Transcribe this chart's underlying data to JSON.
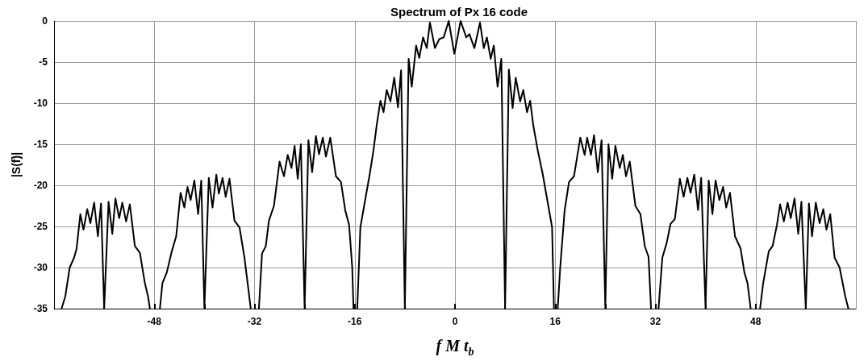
{
  "chart_data": {
    "type": "line",
    "title": "Spectrum of Px 16 code",
    "xlabel": "f M t$_{b}$",
    "ylabel": "|S(f)|",
    "xlim": [
      -64,
      64
    ],
    "ylim": [
      -35,
      0
    ],
    "xticks": [
      {
        "value": -56,
        "label": null
      },
      -48,
      {
        "value": -40,
        "label": null
      },
      -32,
      {
        "value": -24,
        "label": null
      },
      -16,
      {
        "value": -8,
        "label": null
      },
      0,
      {
        "value": 8,
        "label": null
      },
      16,
      {
        "value": 24,
        "label": null
      },
      32,
      {
        "value": 40,
        "label": null
      },
      48,
      {
        "value": 56,
        "label": null
      }
    ],
    "yticks": [
      -35,
      -30,
      -25,
      -20,
      -15,
      -10,
      -5,
      0
    ],
    "grid": true,
    "marker": "none",
    "line_style": "solid",
    "series": [
      {
        "color": "#000000",
        "x": [
          -62.8,
          -62.2,
          -61.5,
          -60.8,
          -60.4,
          -59.8,
          -59.3,
          -58.7,
          -58.2,
          -57.6,
          -57.0,
          -56.5,
          -56.0,
          -55.3,
          -54.7,
          -54.2,
          -53.6,
          -53.1,
          -52.5,
          -51.9,
          -51.1,
          -50.3,
          -49.5,
          -49.0,
          -48.7,
          -48,
          -47.1,
          -46.7,
          -46.0,
          -45.2,
          -44.5,
          -43.8,
          -43.2,
          -42.7,
          -42.2,
          -41.6,
          -41.0,
          -40.5,
          -40.0,
          -39.3,
          -38.7,
          -38.1,
          -37.7,
          -37.1,
          -36.6,
          -36.0,
          -35.2,
          -34.4,
          -33.6,
          -33.1,
          -32.6,
          -32,
          -31.3,
          -30.8,
          -30.2,
          -29.7,
          -28.9,
          -28.0,
          -27.3,
          -26.7,
          -26.1,
          -25.6,
          -25.1,
          -24.6,
          -24.0,
          -23.4,
          -22.8,
          -22.2,
          -21.7,
          -21.1,
          -20.6,
          -19.9,
          -19.0,
          -18.2,
          -17.5,
          -16.9,
          -16.4,
          -16.2,
          -16,
          -15.6,
          -15.1,
          -14.5,
          -13.6,
          -13.0,
          -12.5,
          -11.9,
          -11.4,
          -10.9,
          -10.3,
          -9.7,
          -9.1,
          -8.6,
          -8.0,
          -7.4,
          -6.9,
          -6.2,
          -5.7,
          -5.1,
          -4.5,
          -4.0,
          -3.2,
          -2.5,
          -1.8,
          -1.0,
          -0.1,
          0.9,
          1.8,
          2.3,
          3.1,
          4.0,
          4.6,
          5.1,
          5.7,
          6.2,
          6.8,
          7.4,
          8.0,
          8.6,
          9.2,
          9.7,
          10.4,
          10.9,
          11.5,
          12.0,
          12.5,
          13.2,
          14.0,
          14.9,
          15.5,
          15.8,
          16,
          16.4,
          16.8,
          17.5,
          18.2,
          19.0,
          20.0,
          20.7,
          21.1,
          21.7,
          22.2,
          22.8,
          23.4,
          24.0,
          24.5,
          25.1,
          25.6,
          26.3,
          26.8,
          27.3,
          27.9,
          28.8,
          29.6,
          30.3,
          30.9,
          31.3,
          32,
          32.5,
          33.1,
          33.8,
          34.4,
          35.1,
          35.9,
          36.5,
          37.1,
          37.6,
          38.2,
          38.8,
          39.3,
          40.0,
          40.5,
          41.1,
          41.6,
          42.2,
          42.8,
          43.3,
          43.9,
          44.7,
          45.6,
          46.2,
          46.7,
          47.2,
          48,
          48.7,
          49.2,
          50.1,
          50.7,
          51.4,
          51.9,
          52.5,
          53.1,
          53.6,
          54.2,
          54.8,
          55.3,
          56.0,
          56.5,
          57.0,
          57.6,
          58.2,
          58.8,
          59.3,
          59.9,
          60.6,
          61.4,
          62.3,
          62.8
        ],
        "values": [
          -35,
          -33.5,
          -30,
          -28.8,
          -27.7,
          -23.5,
          -25.4,
          -22.9,
          -24.6,
          -22.1,
          -26.2,
          -22.2,
          -35,
          -22.0,
          -25.9,
          -21.6,
          -24.0,
          -22.1,
          -24.4,
          -22.3,
          -27.4,
          -28.2,
          -31.9,
          -33.5,
          -35,
          null,
          -35,
          -31.9,
          -30.6,
          -28.0,
          -26.2,
          -20.9,
          -22.7,
          -20.2,
          -21.8,
          -19.4,
          -23.5,
          -19.4,
          -35,
          -19.1,
          -22.7,
          -18.7,
          -21.0,
          -19.1,
          -21.4,
          -19.2,
          -24.3,
          -25.1,
          -28.8,
          -31.9,
          -35,
          null,
          -35,
          -28.3,
          -27.4,
          -24.3,
          -22.5,
          -17.1,
          -18.9,
          -16.3,
          -17.9,
          -15.2,
          -19.2,
          -15.0,
          -35,
          -14.5,
          -18.4,
          -14.0,
          -16.2,
          -14.2,
          -16.5,
          -14.2,
          -18.9,
          -19.6,
          -23.1,
          -24.8,
          -30.0,
          -35,
          null,
          -35,
          -25.1,
          -22.5,
          -18.6,
          -15.7,
          -12.7,
          -9.7,
          -11.1,
          -8.4,
          -9.8,
          -6.9,
          -10.5,
          -6.0,
          -35,
          -4.6,
          -8.0,
          -3.0,
          -4.5,
          -2.0,
          -3.3,
          -0.2,
          -3.3,
          -2.2,
          -2.0,
          0,
          -4.0,
          0,
          -2.0,
          -1.6,
          -3.3,
          -0.2,
          -3.3,
          -2.0,
          -4.6,
          -3.0,
          -8.0,
          -4.6,
          -35,
          -5.9,
          -10.6,
          -6.9,
          -9.8,
          -8.4,
          -11.1,
          -9.7,
          -12.7,
          -15.7,
          -18.6,
          -22.5,
          -25.1,
          -35,
          null,
          -35,
          -30.0,
          -23.1,
          -19.6,
          -18.9,
          -14.2,
          -16.3,
          -14.2,
          -16.3,
          -13.9,
          -18.4,
          -14.5,
          -35,
          -15.0,
          -19.2,
          -15.2,
          -17.9,
          -16.3,
          -18.9,
          -17.1,
          -22.5,
          -23.5,
          -27.4,
          -28.7,
          -35,
          null,
          -35,
          -28.8,
          -27.0,
          -24.7,
          -24.1,
          -19.2,
          -21.4,
          -19.1,
          -20.9,
          -18.7,
          -23.0,
          -19.1,
          -35,
          -19.4,
          -23.5,
          -19.4,
          -21.8,
          -20.2,
          -22.7,
          -20.9,
          -26.2,
          -27.7,
          -30.6,
          -31.9,
          -35,
          null,
          -35,
          -31.9,
          -28.0,
          -27.4,
          -24.8,
          -22.3,
          -24.4,
          -22.1,
          -24.0,
          -21.6,
          -25.9,
          -22.0,
          -35,
          -22.2,
          -26.2,
          -22.1,
          -24.6,
          -22.9,
          -25.4,
          -23.5,
          -28.8,
          -30,
          -33.5,
          -35
        ]
      }
    ]
  }
}
